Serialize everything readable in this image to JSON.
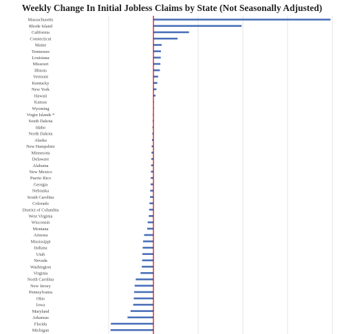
{
  "chart_data": {
    "type": "bar",
    "orientation": "horizontal",
    "title": "Weekly Change In Initial Jobless Claims by State (Not Seasonally Adjusted)",
    "xlabel": "",
    "ylabel": "",
    "grid": true,
    "zero_line_color": "#cc0000",
    "bar_color": "#4a6fb8",
    "xlim": [
      -5000,
      10000
    ],
    "gridlines": [
      -2500,
      0,
      2500,
      5000,
      7500,
      10000
    ],
    "categories": [
      "Massachusetts",
      "Rhode Island",
      "California",
      "Connecticut",
      "Maine",
      "Tennessee",
      "Louisiana",
      "Missouri",
      "Illinois",
      "Vermont",
      "Kentucky",
      "New York",
      "Hawaii",
      "Kansas",
      "Wyoming",
      "Virgin Islands *",
      "South Dakota",
      "Idaho",
      "North Dakota",
      "Alaska",
      "New Hampshire",
      "Minnesota",
      "Delaware",
      "Alabama",
      "New Mexico",
      "Puerto Rico",
      "Georgia",
      "Nebraska",
      "South Carolina",
      "Colorado",
      "District of Columbia",
      "West Virginia",
      "Wisconsin",
      "Montana",
      "Arizona",
      "Mississippi",
      "Indiana",
      "Utah",
      "Nevada",
      "Washington",
      "Virginia",
      "North Carolina",
      "New Jersey",
      "Pennsylvania",
      "Ohio",
      "Iowa",
      "Maryland",
      "Arkansas",
      "Florida",
      "Michigan"
    ],
    "values": [
      9900,
      4930,
      1990,
      1350,
      460,
      420,
      410,
      390,
      360,
      260,
      220,
      170,
      120,
      30,
      10,
      -20,
      -40,
      -50,
      -60,
      -80,
      -100,
      -110,
      -120,
      -130,
      -140,
      -150,
      -160,
      -180,
      -190,
      -220,
      -240,
      -260,
      -320,
      -350,
      -520,
      -580,
      -600,
      -620,
      -630,
      -650,
      -720,
      -990,
      -1050,
      -1080,
      -1100,
      -1130,
      -1280,
      -1450,
      -2380,
      -2400
    ]
  }
}
